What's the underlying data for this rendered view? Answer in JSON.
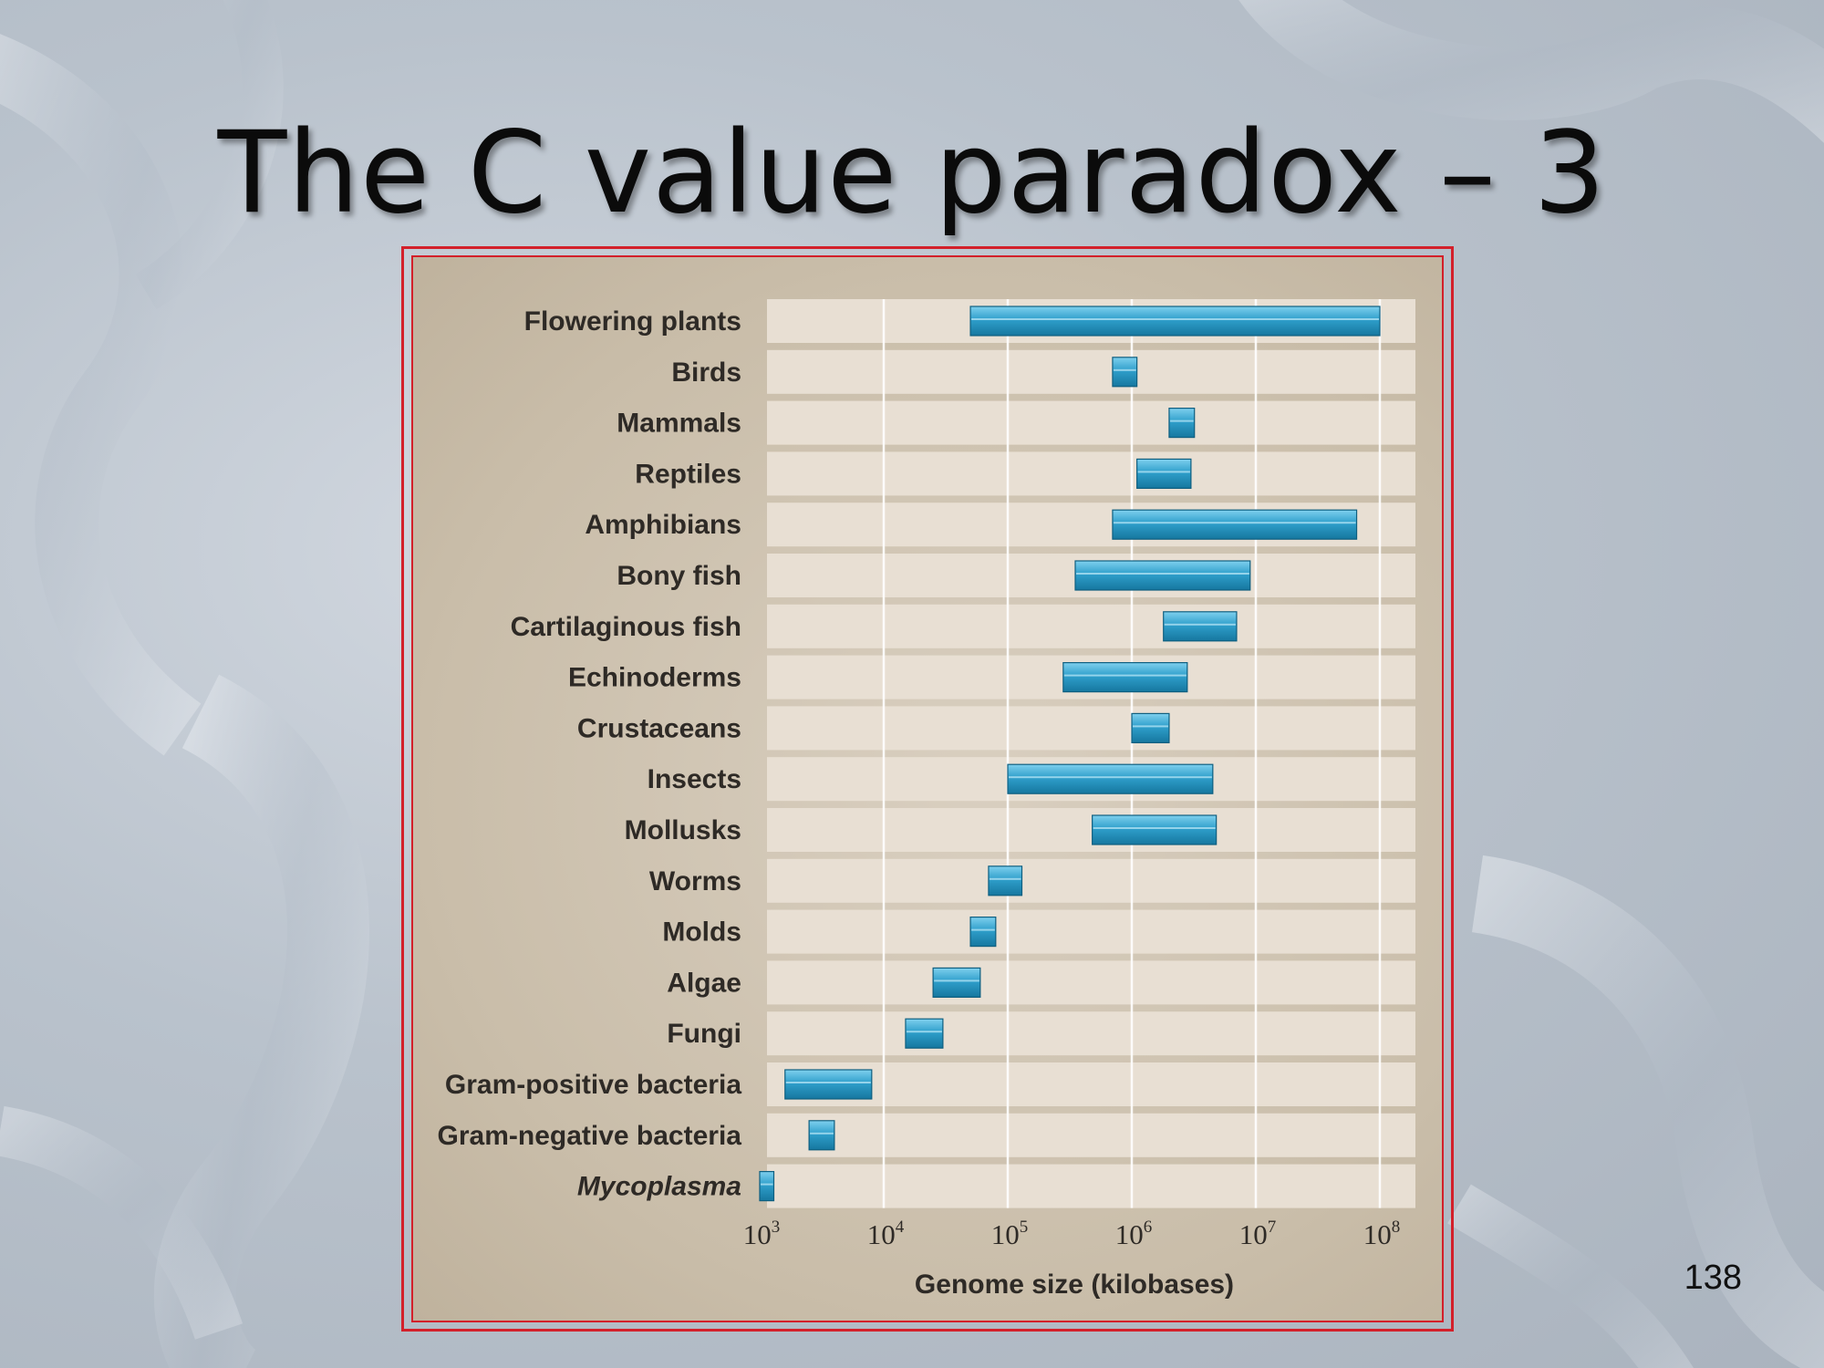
{
  "slide": {
    "title": "The C value paradox – 3",
    "page_number": "138"
  },
  "chart_data": {
    "type": "bar",
    "orientation": "horizontal",
    "subtype": "range",
    "xscale": "log",
    "xlabel": "Genome size (kilobases)",
    "xlim": [
      1000,
      100000000
    ],
    "xticks": [
      {
        "value": 1000,
        "base": "10",
        "exp": "3"
      },
      {
        "value": 10000,
        "base": "10",
        "exp": "4"
      },
      {
        "value": 100000,
        "base": "10",
        "exp": "5"
      },
      {
        "value": 1000000,
        "base": "10",
        "exp": "6"
      },
      {
        "value": 10000000,
        "base": "10",
        "exp": "7"
      },
      {
        "value": 100000000,
        "base": "10",
        "exp": "8"
      }
    ],
    "grid": true,
    "bar_color": "#2f9fcb",
    "categories": [
      {
        "label": "Flowering plants",
        "italic": false,
        "min": 50000,
        "max": 100000000
      },
      {
        "label": "Birds",
        "italic": false,
        "min": 700000,
        "max": 1100000
      },
      {
        "label": "Mammals",
        "italic": false,
        "min": 2000000,
        "max": 3200000
      },
      {
        "label": "Reptiles",
        "italic": false,
        "min": 1100000,
        "max": 3000000
      },
      {
        "label": "Amphibians",
        "italic": false,
        "min": 700000,
        "max": 65000000
      },
      {
        "label": "Bony fish",
        "italic": false,
        "min": 350000,
        "max": 9000000
      },
      {
        "label": "Cartilaginous fish",
        "italic": false,
        "min": 1800000,
        "max": 7000000
      },
      {
        "label": "Echinoderms",
        "italic": false,
        "min": 280000,
        "max": 2800000
      },
      {
        "label": "Crustaceans",
        "italic": false,
        "min": 1000000,
        "max": 2000000
      },
      {
        "label": "Insects",
        "italic": false,
        "min": 100000,
        "max": 4500000
      },
      {
        "label": "Mollusks",
        "italic": false,
        "min": 480000,
        "max": 4800000
      },
      {
        "label": "Worms",
        "italic": false,
        "min": 70000,
        "max": 130000
      },
      {
        "label": "Molds",
        "italic": false,
        "min": 50000,
        "max": 80000
      },
      {
        "label": "Algae",
        "italic": false,
        "min": 25000,
        "max": 60000
      },
      {
        "label": "Fungi",
        "italic": false,
        "min": 15000,
        "max": 30000
      },
      {
        "label": "Gram-positive bacteria",
        "italic": false,
        "min": 1600,
        "max": 8000
      },
      {
        "label": "Gram-negative bacteria",
        "italic": false,
        "min": 2500,
        "max": 4000
      },
      {
        "label": "Mycoplasma",
        "italic": true,
        "min": 1000,
        "max": 1300
      }
    ]
  }
}
